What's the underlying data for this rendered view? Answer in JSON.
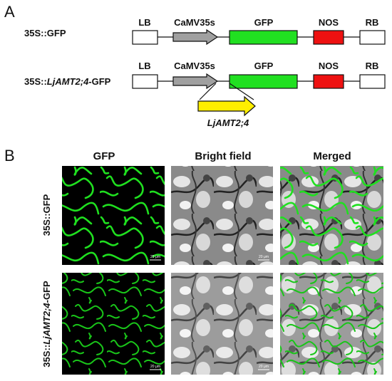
{
  "panel_a": {
    "label": "A",
    "constructs": [
      {
        "name_parts": [
          "35S::GFP"
        ],
        "elements": [
          "LB",
          "CaMV35s",
          "GFP",
          "NOS",
          "RB"
        ]
      },
      {
        "name_parts": [
          "35S::",
          "LjAMT2;4",
          "-GFP"
        ],
        "elements": [
          "LB",
          "CaMV35s",
          "GFP",
          "NOS",
          "RB"
        ],
        "insert": "LjAMT2;4"
      }
    ]
  },
  "panel_b": {
    "label": "B",
    "columns": [
      "GFP",
      "Bright field",
      "Merged"
    ],
    "rows": [
      {
        "label_parts": [
          "35S::GFP"
        ]
      },
      {
        "label_parts": [
          "35S::",
          "LjAMT2;4",
          "-GFP"
        ]
      }
    ],
    "scale_bar": "20 μm"
  }
}
